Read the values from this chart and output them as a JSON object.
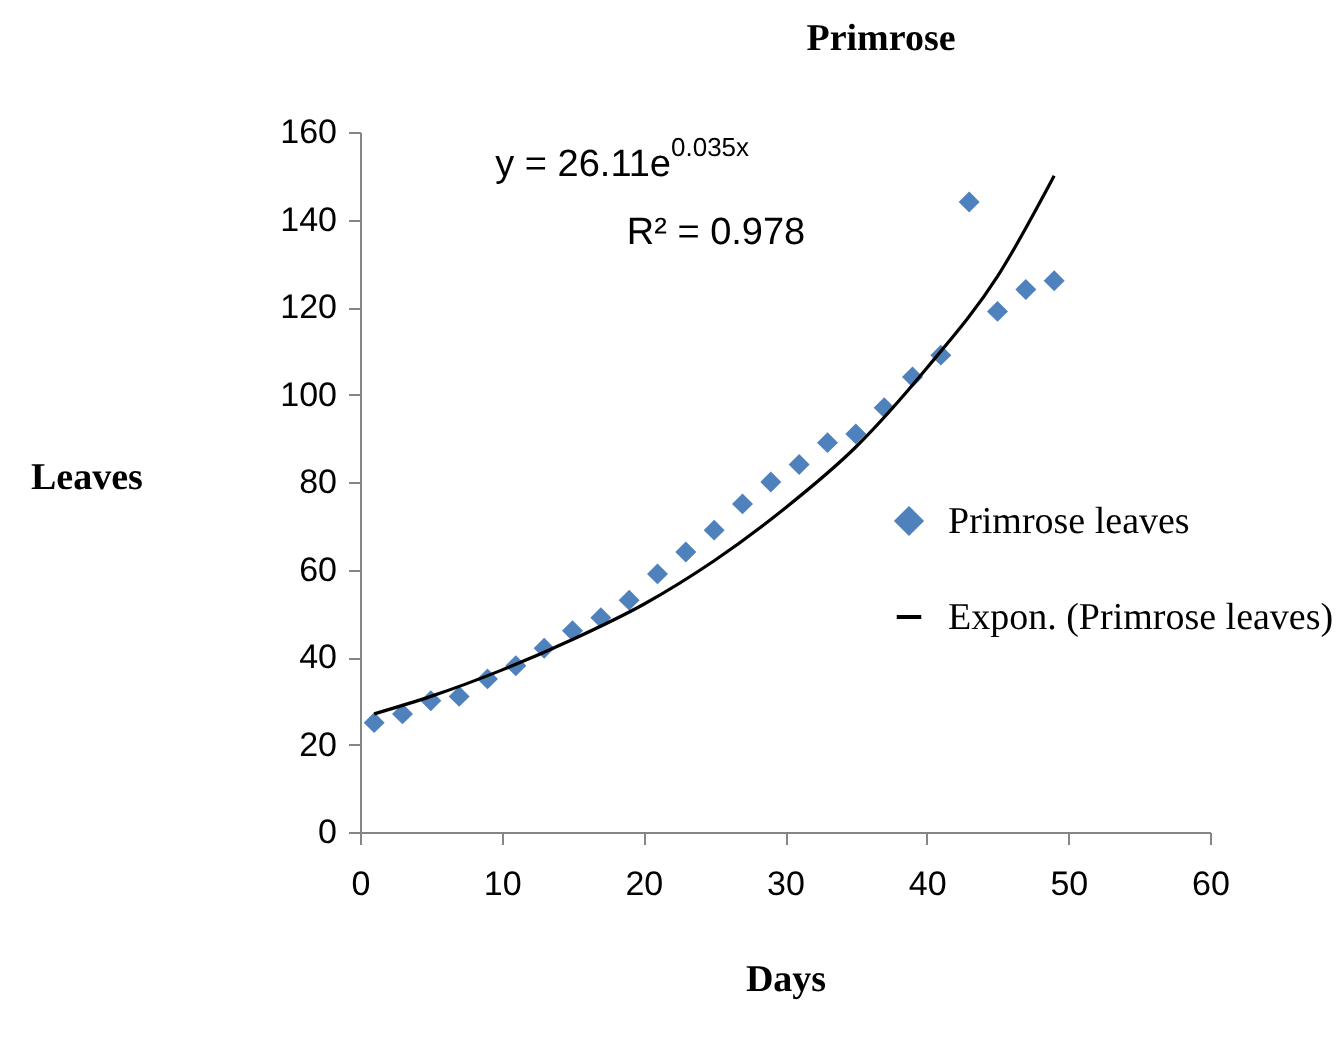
{
  "chart_data": {
    "type": "scatter",
    "title": "Primrose",
    "xlabel": "Days",
    "ylabel": "Leaves",
    "xlim": [
      0,
      60
    ],
    "xticks": [
      0,
      10,
      20,
      30,
      40,
      50,
      60
    ],
    "ylim": [
      0,
      160
    ],
    "yticks": [
      0,
      20,
      40,
      60,
      80,
      100,
      120,
      140,
      160
    ],
    "grid": false,
    "legend": "right",
    "marker": "diamond",
    "annotations": [
      "y = 26.11e$^{0.035x}$",
      "R² = 0.978"
    ],
    "series": [
      {
        "name": "Primrose leaves",
        "color": "#4f81bd",
        "x": [
          1,
          3,
          5,
          7,
          9,
          11,
          13,
          15,
          17,
          19,
          21,
          23,
          25,
          27,
          29,
          31,
          33,
          35,
          37,
          39,
          41,
          43,
          45,
          47,
          49
        ],
        "values": [
          25,
          27,
          30,
          31,
          35,
          38,
          42,
          46,
          49,
          53,
          59,
          64,
          69,
          75,
          80,
          84,
          89,
          91,
          97,
          104,
          109,
          144,
          119,
          124,
          126
        ]
      },
      {
        "name": "Expon. (Primrose leaves)",
        "type": "line",
        "color": "#000000",
        "marker": "none",
        "line_style": "solid",
        "x": [
          1,
          5,
          10,
          15,
          20,
          25,
          30,
          35,
          40,
          45,
          49
        ],
        "values": [
          27,
          31,
          37,
          44,
          52,
          62,
          74,
          88,
          106,
          127,
          150
        ]
      }
    ]
  }
}
